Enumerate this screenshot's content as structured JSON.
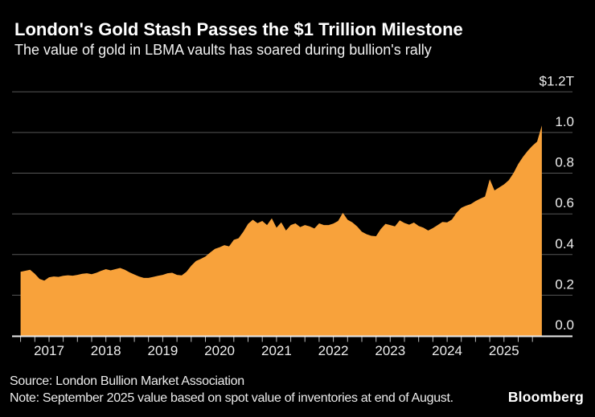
{
  "title": "London's Gold Stash Passes the $1 Trillion Milestone",
  "subtitle": "The value of gold in LBMA vaults has soared during bullion's rally",
  "footer": {
    "source": "Source: London Bullion Market Association",
    "note": "Note: September 2025 value based on spot value of inventories at end of August.",
    "brand": "Bloomberg"
  },
  "colors": {
    "background": "#000000",
    "area": "#F8A23B",
    "gridline": "#565656",
    "axis_line": "#EBEBEB",
    "tick": "#C0C0C0",
    "axis_text": "#EDEDED"
  },
  "chart_data": {
    "type": "area",
    "title": "London's Gold Stash Passes the $1 Trillion Milestone",
    "subtitle": "The value of gold in LBMA vaults has soared during bullion's rally",
    "unit": "trillions of US dollars",
    "frequency": "monthly",
    "x_start": "2016-07",
    "x_end": "2025-09",
    "x_tick_interval": "quarterly",
    "grid": "horizontal",
    "legend_position": "none",
    "y_axis": {
      "min": 0.0,
      "max": 1.2,
      "tick_step": 0.2,
      "ticks": [
        {
          "value": 1.2,
          "label": "$1.2T"
        },
        {
          "value": 1.0,
          "label": "1.0"
        },
        {
          "value": 0.8,
          "label": "0.8"
        },
        {
          "value": 0.6,
          "label": "0.6"
        },
        {
          "value": 0.4,
          "label": "0.4"
        },
        {
          "value": 0.2,
          "label": "0.2"
        },
        {
          "value": 0.0,
          "label": "0.0"
        }
      ]
    },
    "x_year_labels": [
      "2017",
      "2018",
      "2019",
      "2020",
      "2021",
      "2022",
      "2023",
      "2024",
      "2025"
    ],
    "series": [
      {
        "name": "Value of gold held in LBMA vaults ($T)",
        "start_month": "2016-07",
        "values": [
          0.315,
          0.32,
          0.325,
          0.305,
          0.28,
          0.272,
          0.288,
          0.292,
          0.29,
          0.295,
          0.298,
          0.296,
          0.3,
          0.305,
          0.308,
          0.303,
          0.31,
          0.32,
          0.328,
          0.322,
          0.328,
          0.334,
          0.325,
          0.312,
          0.302,
          0.292,
          0.285,
          0.285,
          0.29,
          0.295,
          0.3,
          0.308,
          0.31,
          0.3,
          0.297,
          0.315,
          0.345,
          0.368,
          0.378,
          0.39,
          0.41,
          0.428,
          0.436,
          0.446,
          0.44,
          0.472,
          0.48,
          0.512,
          0.551,
          0.571,
          0.554,
          0.565,
          0.545,
          0.578,
          0.532,
          0.558,
          0.518,
          0.545,
          0.553,
          0.535,
          0.545,
          0.538,
          0.528,
          0.553,
          0.545,
          0.545,
          0.552,
          0.565,
          0.605,
          0.571,
          0.558,
          0.538,
          0.512,
          0.5,
          0.492,
          0.49,
          0.525,
          0.551,
          0.545,
          0.538,
          0.568,
          0.555,
          0.547,
          0.557,
          0.54,
          0.532,
          0.518,
          0.53,
          0.545,
          0.56,
          0.558,
          0.572,
          0.605,
          0.63,
          0.64,
          0.648,
          0.663,
          0.675,
          0.685,
          0.77,
          0.715,
          0.73,
          0.745,
          0.765,
          0.8,
          0.845,
          0.88,
          0.91,
          0.935,
          0.955,
          1.035
        ]
      }
    ]
  }
}
